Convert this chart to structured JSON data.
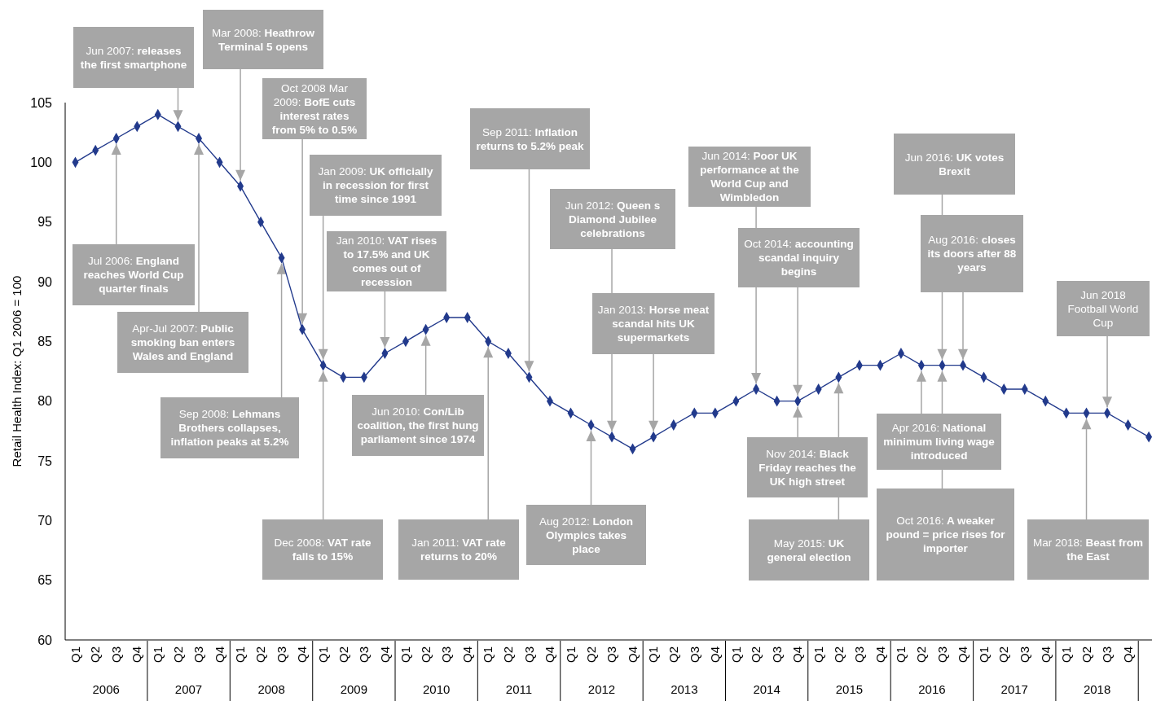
{
  "chart_data": {
    "type": "line",
    "ylabel": "Retail Health Index: Q1 2006 = 100",
    "x": [
      "2006-02-15",
      "2006-05-15",
      "2006-08-15",
      "2006-11-15",
      "2007-02-15",
      "2007-05-15",
      "2007-08-15",
      "2007-11-15",
      "2008-02-15",
      "2008-05-15",
      "2008-08-15",
      "2008-11-15",
      "2009-02-15",
      "2009-05-15",
      "2009-08-15",
      "2009-11-15",
      "2010-02-15",
      "2010-05-15",
      "2010-08-15",
      "2010-11-15",
      "2011-02-15",
      "2011-05-15",
      "2011-08-15",
      "2011-11-15",
      "2012-02-15",
      "2012-05-15",
      "2012-08-15",
      "2012-11-15",
      "2013-02-15",
      "2013-05-15",
      "2013-08-15",
      "2013-11-15",
      "2014-02-15",
      "2014-05-15",
      "2014-08-15",
      "2014-11-15",
      "2015-02-15",
      "2015-05-15",
      "2015-08-15",
      "2015-11-15",
      "2016-02-15",
      "2016-05-15",
      "2016-08-15",
      "2016-11-15",
      "2017-02-15",
      "2017-05-15",
      "2017-08-15",
      "2017-11-15",
      "2018-02-15",
      "2018-05-15",
      "2018-08-15",
      "2018-11-15",
      "2019-02-15"
    ],
    "series": [
      {
        "color": "#223a8c",
        "values": [
          100,
          101,
          102,
          103,
          104,
          103,
          102,
          100,
          98,
          95,
          92,
          86,
          83,
          82,
          82,
          84,
          85,
          86,
          87,
          87,
          85,
          84,
          82,
          80,
          79,
          78,
          77,
          76,
          77,
          78,
          79,
          79,
          80,
          81,
          80,
          80,
          81,
          82,
          83,
          83,
          84,
          83,
          83,
          83,
          82,
          81,
          81,
          80,
          79,
          79,
          79,
          78,
          77
        ]
      }
    ],
    "marker": "diamond",
    "line_style": "solid",
    "ylim": [
      60,
      105
    ],
    "yticks": [
      60,
      65,
      70,
      75,
      80,
      85,
      90,
      95,
      100,
      105
    ],
    "xlim": [
      "2006-01-01",
      "2019-03-01"
    ],
    "xticks": [
      {
        "value": "2006-02-15",
        "label": "Q1"
      },
      {
        "value": "2006-05-15",
        "label": "Q2"
      },
      {
        "value": "2006-08-15",
        "label": "Q3"
      },
      {
        "value": "2006-11-15",
        "label": "Q4"
      },
      {
        "value": "2007-02-15",
        "label": "Q1"
      },
      {
        "value": "2007-05-15",
        "label": "Q2"
      },
      {
        "value": "2007-08-15",
        "label": "Q3"
      },
      {
        "value": "2007-11-15",
        "label": "Q4"
      },
      {
        "value": "2008-02-15",
        "label": "Q1"
      },
      {
        "value": "2008-05-15",
        "label": "Q2"
      },
      {
        "value": "2008-08-15",
        "label": "Q3"
      },
      {
        "value": "2008-11-15",
        "label": "Q4"
      },
      {
        "value": "2009-02-15",
        "label": "Q1"
      },
      {
        "value": "2009-05-15",
        "label": "Q2"
      },
      {
        "value": "2009-08-15",
        "label": "Q3"
      },
      {
        "value": "2009-11-15",
        "label": "Q4"
      },
      {
        "value": "2010-02-15",
        "label": "Q1"
      },
      {
        "value": "2010-05-15",
        "label": "Q2"
      },
      {
        "value": "2010-08-15",
        "label": "Q3"
      },
      {
        "value": "2010-11-15",
        "label": "Q4"
      },
      {
        "value": "2011-02-15",
        "label": "Q1"
      },
      {
        "value": "2011-05-15",
        "label": "Q2"
      },
      {
        "value": "2011-08-15",
        "label": "Q3"
      },
      {
        "value": "2011-11-15",
        "label": "Q4"
      },
      {
        "value": "2012-02-15",
        "label": "Q1"
      },
      {
        "value": "2012-05-15",
        "label": "Q2"
      },
      {
        "value": "2012-08-15",
        "label": "Q3"
      },
      {
        "value": "2012-11-15",
        "label": "Q4"
      },
      {
        "value": "2013-02-15",
        "label": "Q1"
      },
      {
        "value": "2013-05-15",
        "label": "Q2"
      },
      {
        "value": "2013-08-15",
        "label": "Q3"
      },
      {
        "value": "2013-11-15",
        "label": "Q4"
      },
      {
        "value": "2014-02-15",
        "label": "Q1"
      },
      {
        "value": "2014-05-15",
        "label": "Q2"
      },
      {
        "value": "2014-08-15",
        "label": "Q3"
      },
      {
        "value": "2014-11-15",
        "label": "Q4"
      },
      {
        "value": "2015-02-15",
        "label": "Q1"
      },
      {
        "value": "2015-05-15",
        "label": "Q2"
      },
      {
        "value": "2015-08-15",
        "label": "Q3"
      },
      {
        "value": "2015-11-15",
        "label": "Q4"
      },
      {
        "value": "2016-02-15",
        "label": "Q1"
      },
      {
        "value": "2016-05-15",
        "label": "Q2"
      },
      {
        "value": "2016-08-15",
        "label": "Q3"
      },
      {
        "value": "2016-11-15",
        "label": "Q4"
      },
      {
        "value": "2017-02-15",
        "label": "Q1"
      },
      {
        "value": "2017-05-15",
        "label": "Q2"
      },
      {
        "value": "2017-08-15",
        "label": "Q3"
      },
      {
        "value": "2017-11-15",
        "label": "Q4"
      },
      {
        "value": "2018-02-15",
        "label": "Q1"
      },
      {
        "value": "2018-05-15",
        "label": "Q2"
      },
      {
        "value": "2018-08-15",
        "label": "Q3"
      },
      {
        "value": "2018-11-15",
        "label": "Q4"
      }
    ],
    "x2lim": [
      "2006-01-01",
      "2019-03-01"
    ],
    "x2ticks": [
      {
        "value": "2006-07-01",
        "label": "2006"
      },
      {
        "value": "2007-07-01",
        "label": "2007"
      },
      {
        "value": "2008-07-01",
        "label": "2008"
      },
      {
        "value": "2009-07-01",
        "label": "2009"
      },
      {
        "value": "2010-07-01",
        "label": "2010"
      },
      {
        "value": "2011-07-01",
        "label": "2011"
      },
      {
        "value": "2012-07-01",
        "label": "2012"
      },
      {
        "value": "2013-07-01",
        "label": "2013"
      },
      {
        "value": "2014-07-01",
        "label": "2014"
      },
      {
        "value": "2015-07-01",
        "label": "2015"
      },
      {
        "value": "2016-07-01",
        "label": "2016"
      },
      {
        "value": "2017-07-01",
        "label": "2017"
      },
      {
        "value": "2018-07-01",
        "label": "2018"
      }
    ],
    "grid": false,
    "annotations": [
      {
        "text": "Jun 2007: releases the first smartphone",
        "x": "2007-05-15",
        "y": 103
      },
      {
        "text": "Mar 2008: Heathrow Terminal 5 opens",
        "x": "2008-02-15",
        "y": 98
      },
      {
        "text": "Oct 2008   Mar 2009: BofE cuts interest rates from 5% to 0.5%",
        "x": "2008-11-15",
        "y": 86
      },
      {
        "text": "Jan 2009: UK officially in recession for first time since 1991",
        "x": "2009-02-15",
        "y": 83
      },
      {
        "text": "Jan 2010: VAT rises to 17.5% and UK comes out of recession",
        "x": "2009-11-15",
        "y": 84
      },
      {
        "text": "Jul 2006: England reaches World Cup quarter finals",
        "x": "2006-08-15",
        "y": 102
      },
      {
        "text": "Apr-Jul 2007: Public smoking ban enters Wales and England",
        "x": "2007-08-15",
        "y": 102
      },
      {
        "text": "Sep 2008: Lehmans Brothers collapses, inflation peaks at 5.2%",
        "x": "2008-08-15",
        "y": 92
      },
      {
        "text": "Dec 2008: VAT rate falls to 15%",
        "x": "2009-02-15",
        "y": 83
      },
      {
        "text": "Jun 2010: Con/Lib coalition, the first hung parliament since 1974",
        "x": "2010-05-15",
        "y": 86
      },
      {
        "text": "Sep 2011: Inflation returns to 5.2% peak",
        "x": "2011-08-15",
        "y": 82
      },
      {
        "text": "Jan 2011: VAT rate returns to 20%",
        "x": "2011-02-15",
        "y": 85
      },
      {
        "text": "Jun 2012: Queen s Diamond Jubilee celebrations",
        "x": "2012-08-15",
        "y": 77
      },
      {
        "text": "Aug 2012: London Olympics takes place",
        "x": "2012-05-15",
        "y": 78
      },
      {
        "text": "Jan 2013: Horse meat scandal hits UK supermarkets",
        "x": "2013-02-15",
        "y": 77
      },
      {
        "text": "Jun 2014: Poor UK performance at the World Cup and Wimbledon",
        "x": "2014-05-15",
        "y": 81
      },
      {
        "text": "Oct 2014: accounting scandal inquiry begins",
        "x": "2014-11-15",
        "y": 80
      },
      {
        "text": "Nov 2014: Black Friday reaches the UK high street",
        "x": "2014-11-15",
        "y": 80
      },
      {
        "text": "May 2015: UK general election",
        "x": "2015-05-15",
        "y": 82
      },
      {
        "text": "Jun 2016: UK votes Brexit",
        "x": "2016-08-15",
        "y": 83
      },
      {
        "text": "Aug 2016: closes its doors after 88 years",
        "x": "2016-11-15",
        "y": 83
      },
      {
        "text": "Apr 2016: National minimum living wage introduced",
        "x": "2016-05-15",
        "y": 83
      },
      {
        "text": "Oct 2016: A weaker pound = price rises for importer",
        "x": "2016-08-15",
        "y": 83
      },
      {
        "text": "Jun 2018 Football World Cup",
        "x": "2018-08-15",
        "y": 79
      },
      {
        "text": "Mar 2018: Beast from the East",
        "x": "2018-05-15",
        "y": 79
      }
    ]
  }
}
